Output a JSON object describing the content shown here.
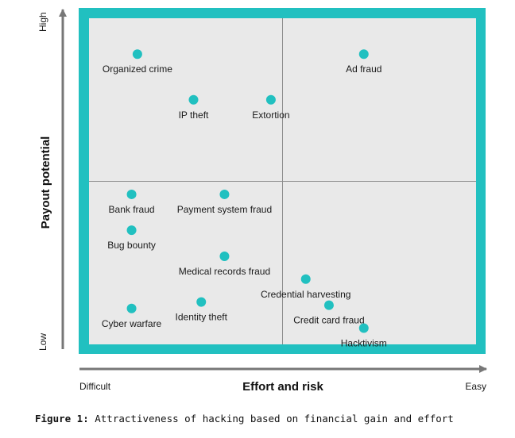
{
  "colors": {
    "frame": "#21c0c0",
    "plot_bg": "#e9e9e9",
    "point": "#21c0c0",
    "axis": "#777777",
    "divider": "#8c8c8c"
  },
  "caption": {
    "prefix": "Figure 1:",
    "text": " Attractiveness of hacking based on financial gain and effort"
  },
  "chart_data": {
    "type": "scatter",
    "title": "",
    "xlabel": "Effort and risk",
    "ylabel": "Payout potential",
    "x_low_label": "Difficult",
    "x_high_label": "Easy",
    "y_low_label": "Low",
    "y_high_label": "High",
    "xlim": [
      0,
      10
    ],
    "ylim": [
      0,
      10
    ],
    "grid": false,
    "quadrant_dividers": {
      "x": 5,
      "y": 5
    },
    "points": [
      {
        "label": "Organized crime",
        "x": 1.25,
        "y": 8.9
      },
      {
        "label": "Ad fraud",
        "x": 7.1,
        "y": 8.9
      },
      {
        "label": "IP theft",
        "x": 2.7,
        "y": 7.5
      },
      {
        "label": "Extortion",
        "x": 4.7,
        "y": 7.5
      },
      {
        "label": "Bank fraud",
        "x": 1.1,
        "y": 4.6
      },
      {
        "label": "Payment system fraud",
        "x": 3.5,
        "y": 4.6
      },
      {
        "label": "Bug bounty",
        "x": 1.1,
        "y": 3.5
      },
      {
        "label": "Medical records fraud",
        "x": 3.5,
        "y": 2.7
      },
      {
        "label": "Credential harvesting",
        "x": 5.6,
        "y": 2.0
      },
      {
        "label": "Identity theft",
        "x": 2.9,
        "y": 1.3
      },
      {
        "label": "Credit card fraud",
        "x": 6.2,
        "y": 1.2
      },
      {
        "label": "Cyber warfare",
        "x": 1.1,
        "y": 1.1
      },
      {
        "label": "Hacktivism",
        "x": 7.1,
        "y": 0.5
      }
    ]
  }
}
